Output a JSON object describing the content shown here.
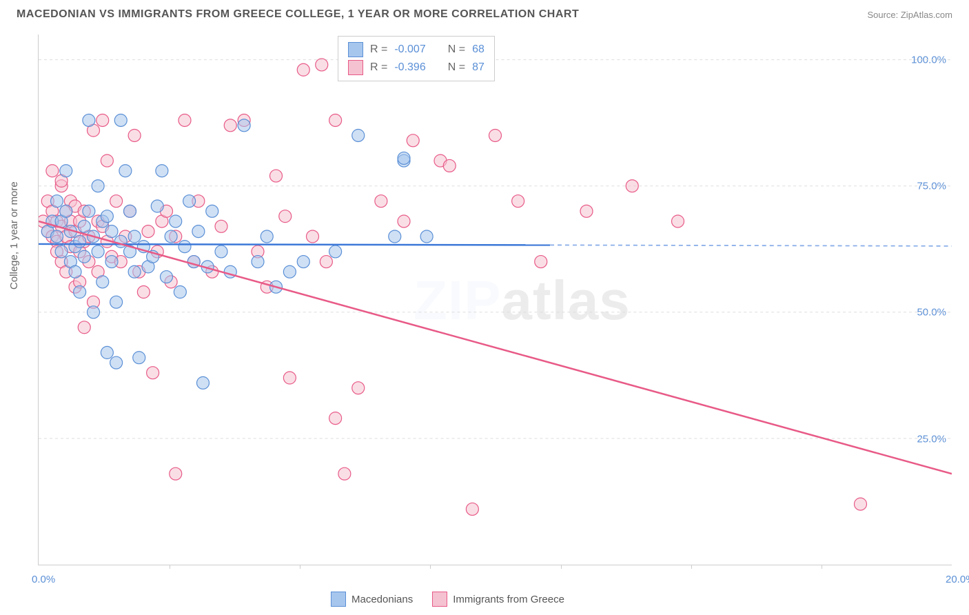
{
  "header": {
    "title": "MACEDONIAN VS IMMIGRANTS FROM GREECE COLLEGE, 1 YEAR OR MORE CORRELATION CHART",
    "source_label": "Source: ",
    "source_name": "ZipAtlas.com"
  },
  "watermark": {
    "z": "ZIP",
    "atlas": "atlas"
  },
  "chart": {
    "type": "scatter",
    "y_axis_label": "College, 1 year or more",
    "xlim": [
      0,
      20
    ],
    "ylim": [
      0,
      105
    ],
    "x_ticks": [
      0,
      20
    ],
    "x_tick_labels": [
      "0.0%",
      "20.0%"
    ],
    "x_minor_ticks": [
      2.86,
      5.71,
      8.57,
      11.43,
      14.29,
      17.14
    ],
    "y_ticks": [
      25,
      50,
      75,
      100
    ],
    "y_tick_labels": [
      "25.0%",
      "50.0%",
      "75.0%",
      "100.0%"
    ],
    "background_color": "#ffffff",
    "grid_color": "#dddddd",
    "axis_color": "#cccccc",
    "label_color": "#5a8fd6",
    "series": [
      {
        "name": "Macedonians",
        "marker_color_fill": "#a7c6ed",
        "marker_color_stroke": "#5a8fd6",
        "marker_radius": 9,
        "marker_opacity": 0.55,
        "line_color": "#3c78d8",
        "line_width": 2.5,
        "dash_color": "#3c78d8",
        "stats": {
          "R": "-0.007",
          "N": "68"
        },
        "trend": {
          "x1": 0,
          "y1": 63.5,
          "x2": 11.2,
          "y2": 63.3,
          "dash_x2": 20,
          "dash_y2": 63.1
        },
        "points": [
          [
            0.2,
            66
          ],
          [
            0.3,
            68
          ],
          [
            0.4,
            65
          ],
          [
            0.4,
            72
          ],
          [
            0.5,
            62
          ],
          [
            0.5,
            68
          ],
          [
            0.6,
            70
          ],
          [
            0.6,
            78
          ],
          [
            0.7,
            60
          ],
          [
            0.7,
            66
          ],
          [
            0.8,
            63
          ],
          [
            0.8,
            58
          ],
          [
            0.9,
            64
          ],
          [
            0.9,
            54
          ],
          [
            1.0,
            67
          ],
          [
            1.0,
            61
          ],
          [
            1.1,
            88
          ],
          [
            1.1,
            70
          ],
          [
            1.2,
            50
          ],
          [
            1.2,
            65
          ],
          [
            1.3,
            62
          ],
          [
            1.3,
            75
          ],
          [
            1.4,
            56
          ],
          [
            1.4,
            68
          ],
          [
            1.5,
            69
          ],
          [
            1.5,
            42
          ],
          [
            1.6,
            60
          ],
          [
            1.6,
            66
          ],
          [
            1.7,
            52
          ],
          [
            1.7,
            40
          ],
          [
            1.8,
            88
          ],
          [
            1.8,
            64
          ],
          [
            1.9,
            78
          ],
          [
            2.0,
            62
          ],
          [
            2.0,
            70
          ],
          [
            2.1,
            58
          ],
          [
            2.1,
            65
          ],
          [
            2.2,
            41
          ],
          [
            2.3,
            63
          ],
          [
            2.4,
            59
          ],
          [
            2.5,
            61
          ],
          [
            2.6,
            71
          ],
          [
            2.7,
            78
          ],
          [
            2.8,
            57
          ],
          [
            2.9,
            65
          ],
          [
            3.0,
            68
          ],
          [
            3.1,
            54
          ],
          [
            3.2,
            63
          ],
          [
            3.3,
            72
          ],
          [
            3.4,
            60
          ],
          [
            3.5,
            66
          ],
          [
            3.6,
            36
          ],
          [
            3.7,
            59
          ],
          [
            3.8,
            70
          ],
          [
            4.0,
            62
          ],
          [
            4.2,
            58
          ],
          [
            4.5,
            87
          ],
          [
            4.8,
            60
          ],
          [
            5.0,
            65
          ],
          [
            5.2,
            55
          ],
          [
            5.5,
            58
          ],
          [
            5.8,
            60
          ],
          [
            6.5,
            62
          ],
          [
            7.0,
            85
          ],
          [
            7.8,
            65
          ],
          [
            8.0,
            80
          ],
          [
            8.0,
            80.5
          ],
          [
            8.5,
            65
          ]
        ]
      },
      {
        "name": "Immigrants from Greece",
        "marker_color_fill": "#f5c2d1",
        "marker_color_stroke": "#e85a87",
        "marker_radius": 9,
        "marker_opacity": 0.55,
        "line_color": "#e85a87",
        "line_width": 2.5,
        "stats": {
          "R": "-0.396",
          "N": "87"
        },
        "trend": {
          "x1": 0,
          "y1": 68,
          "x2": 20,
          "y2": 18
        },
        "points": [
          [
            0.1,
            68
          ],
          [
            0.2,
            66
          ],
          [
            0.2,
            72
          ],
          [
            0.3,
            65
          ],
          [
            0.3,
            78
          ],
          [
            0.3,
            70
          ],
          [
            0.4,
            64
          ],
          [
            0.4,
            68
          ],
          [
            0.4,
            62
          ],
          [
            0.5,
            75
          ],
          [
            0.5,
            67
          ],
          [
            0.5,
            76
          ],
          [
            0.5,
            60
          ],
          [
            0.6,
            65
          ],
          [
            0.6,
            70
          ],
          [
            0.6,
            58
          ],
          [
            0.7,
            68
          ],
          [
            0.7,
            63
          ],
          [
            0.7,
            72
          ],
          [
            0.8,
            66
          ],
          [
            0.8,
            55
          ],
          [
            0.8,
            71
          ],
          [
            0.9,
            62
          ],
          [
            0.9,
            68
          ],
          [
            0.9,
            56
          ],
          [
            1.0,
            64
          ],
          [
            1.0,
            70
          ],
          [
            1.0,
            47
          ],
          [
            1.1,
            65
          ],
          [
            1.1,
            60
          ],
          [
            1.2,
            86
          ],
          [
            1.2,
            52
          ],
          [
            1.3,
            68
          ],
          [
            1.3,
            58
          ],
          [
            1.4,
            88
          ],
          [
            1.4,
            67
          ],
          [
            1.5,
            64
          ],
          [
            1.5,
            80
          ],
          [
            1.6,
            61
          ],
          [
            1.7,
            72
          ],
          [
            1.8,
            60
          ],
          [
            1.9,
            65
          ],
          [
            2.0,
            70
          ],
          [
            2.1,
            85
          ],
          [
            2.2,
            58
          ],
          [
            2.3,
            54
          ],
          [
            2.4,
            66
          ],
          [
            2.5,
            38
          ],
          [
            2.6,
            62
          ],
          [
            2.7,
            68
          ],
          [
            2.8,
            70
          ],
          [
            2.9,
            56
          ],
          [
            3.0,
            18
          ],
          [
            3.0,
            65
          ],
          [
            3.2,
            88
          ],
          [
            3.4,
            60
          ],
          [
            3.5,
            72
          ],
          [
            3.8,
            58
          ],
          [
            4.0,
            67
          ],
          [
            4.2,
            87
          ],
          [
            4.5,
            88
          ],
          [
            4.8,
            62
          ],
          [
            5.0,
            55
          ],
          [
            5.2,
            77
          ],
          [
            5.4,
            69
          ],
          [
            5.5,
            37
          ],
          [
            5.8,
            98
          ],
          [
            6.0,
            65
          ],
          [
            6.2,
            99
          ],
          [
            6.3,
            60
          ],
          [
            6.5,
            88
          ],
          [
            6.5,
            29
          ],
          [
            6.7,
            18
          ],
          [
            7.0,
            35
          ],
          [
            7.5,
            72
          ],
          [
            8.0,
            68
          ],
          [
            8.2,
            84
          ],
          [
            8.8,
            80
          ],
          [
            9.0,
            79
          ],
          [
            9.5,
            11
          ],
          [
            10.0,
            85
          ],
          [
            10.5,
            72
          ],
          [
            11.0,
            60
          ],
          [
            12.0,
            70
          ],
          [
            13.0,
            75
          ],
          [
            14.0,
            68
          ],
          [
            18.0,
            12
          ]
        ]
      }
    ]
  },
  "stats_legend": {
    "R_label": "R =",
    "N_label": "N ="
  }
}
